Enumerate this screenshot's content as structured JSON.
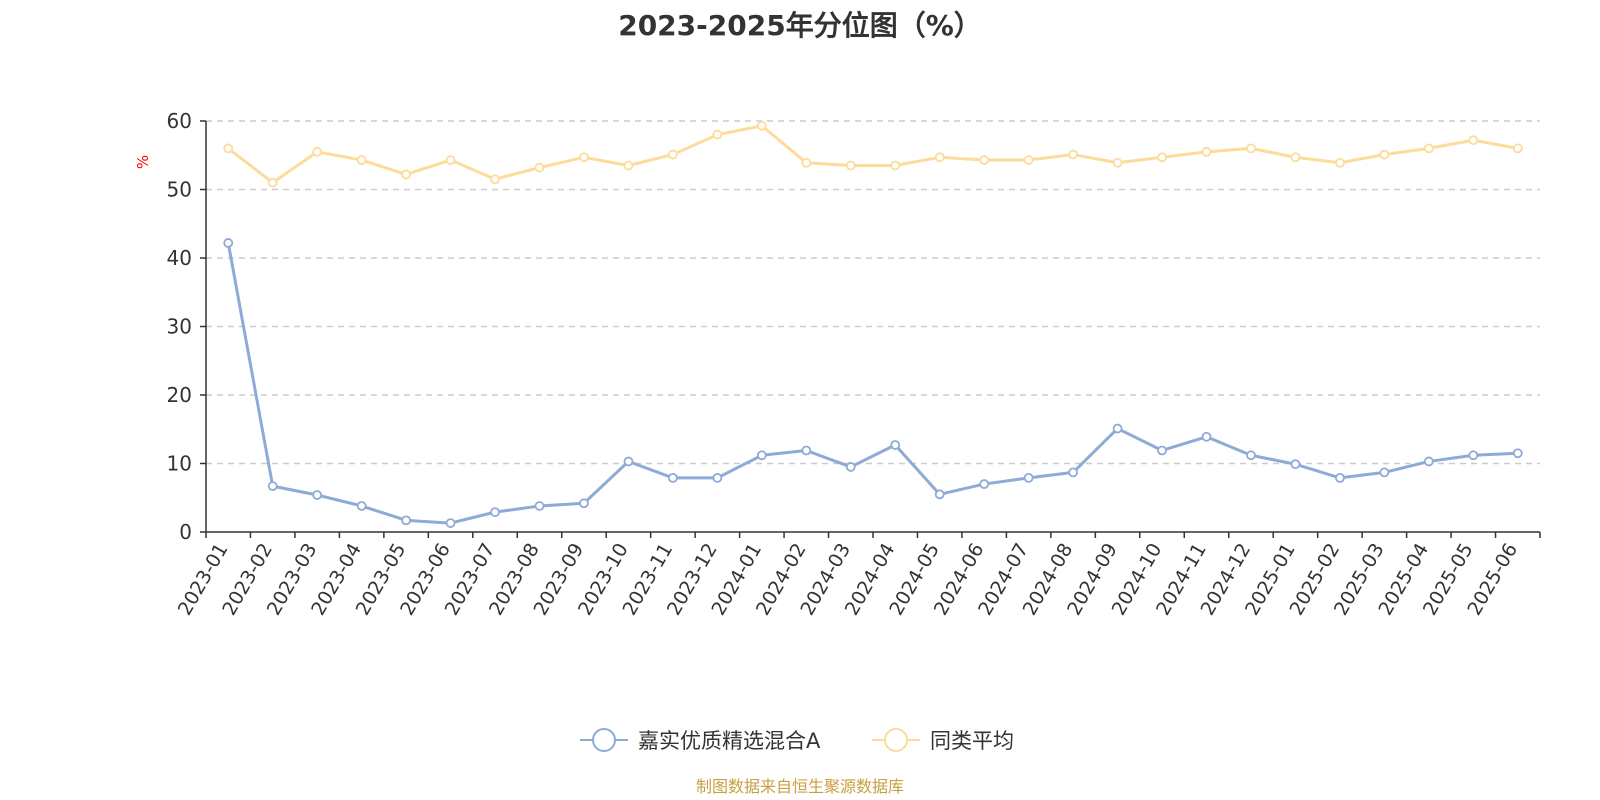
{
  "chart_data": {
    "type": "line",
    "title": "2023-2025年分位图（%）",
    "ylabel": "%",
    "xlabel": "",
    "ylim": [
      0,
      60
    ],
    "yticks": [
      0,
      10,
      20,
      30,
      40,
      50,
      60
    ],
    "grid": true,
    "legend_position": "bottom-center",
    "categories": [
      "2023-01",
      "2023-02",
      "2023-03",
      "2023-04",
      "2023-05",
      "2023-06",
      "2023-07",
      "2023-08",
      "2023-09",
      "2023-10",
      "2023-11",
      "2023-12",
      "2024-01",
      "2024-02",
      "2024-03",
      "2024-04",
      "2024-05",
      "2024-06",
      "2024-07",
      "2024-08",
      "2024-09",
      "2024-10",
      "2024-11",
      "2024-12",
      "2025-01",
      "2025-02",
      "2025-03",
      "2025-04",
      "2025-05",
      "2025-06"
    ],
    "series": [
      {
        "name": "嘉实优质精选混合A",
        "color": "#8eaad6",
        "values": [
          42.2,
          6.7,
          5.4,
          3.8,
          1.7,
          1.3,
          2.9,
          3.8,
          4.2,
          10.3,
          7.9,
          7.9,
          11.2,
          11.9,
          9.5,
          12.7,
          5.5,
          7.0,
          7.9,
          8.7,
          15.1,
          11.9,
          13.9,
          11.2,
          9.9,
          7.9,
          8.7,
          10.3,
          11.2,
          11.5
        ]
      },
      {
        "name": "同类平均",
        "color": "#fddb9a",
        "values": [
          56.0,
          51.0,
          55.5,
          54.3,
          52.2,
          54.3,
          51.5,
          53.2,
          54.7,
          53.5,
          55.1,
          58.0,
          59.3,
          53.9,
          53.5,
          53.5,
          54.7,
          54.3,
          54.3,
          55.1,
          53.9,
          54.7,
          55.5,
          56.0,
          54.7,
          53.9,
          55.1,
          56.0,
          57.2,
          56.0
        ]
      }
    ],
    "unit_color": "#ff0000",
    "axis_color": "#333333",
    "grid_color": "#cccccc"
  },
  "footer": {
    "source_text": "制图数据来自恒生聚源数据库",
    "source_color": "#c8a040"
  }
}
